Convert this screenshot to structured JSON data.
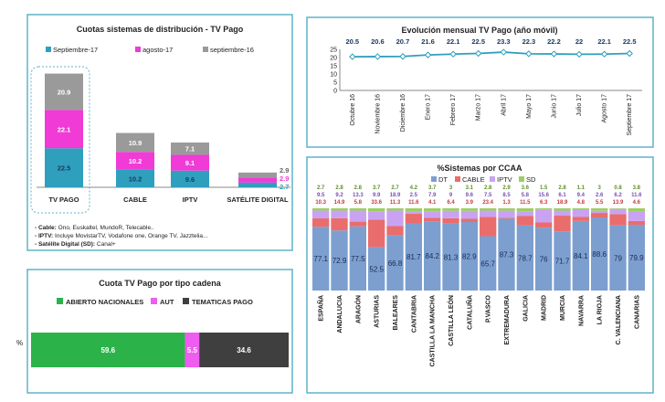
{
  "chart_data": [
    {
      "type": "bar",
      "stacked": true,
      "title": "Cuotas sistemas de distribución - TV Pago",
      "legend_position": "top",
      "categories": [
        "TV PAGO",
        "CABLE",
        "IPTV",
        "SATÉLITE DIGITAL"
      ],
      "series": [
        {
          "name": "Septiembre-17",
          "color": "#2f9fbe",
          "values": [
            22.5,
            10.2,
            9.6,
            2.7
          ]
        },
        {
          "name": "agosto-17",
          "color": "#f03bd6",
          "values": [
            22.1,
            10.2,
            9.1,
            2.9
          ]
        },
        {
          "name": "septiembre-16",
          "color": "#9a9a9a",
          "values": [
            20.9,
            10.9,
            7.1,
            2.9
          ]
        }
      ],
      "notes": [
        {
          "label": "- Cable:",
          "text": " Ono, Euskaltel, MundoR, Telecable.."
        },
        {
          "label": "- IPTV:",
          "text": " Incluye MovistarTV, Vodafone one, Orange TV, Jazztelia..."
        },
        {
          "label": "- Satélite Digital (SD):",
          "text": " Canal+"
        }
      ]
    },
    {
      "type": "line",
      "title": "Evolución mensual TV Pago (año móvil)",
      "color": "#2f9fbe",
      "ylim": [
        0,
        25
      ],
      "yticks": [
        0,
        5,
        10,
        15,
        20,
        25
      ],
      "grid": false,
      "categories": [
        "Octubre 16",
        "Noviembre 16",
        "Diciembre 16",
        "Enero 17",
        "Febrero 17",
        "Marzo 17",
        "Abril 17",
        "Mayo 17",
        "Junio 17",
        "Julio 17",
        "Agosto 17",
        "Septiembre 17"
      ],
      "values": [
        20.5,
        20.6,
        20.7,
        21.6,
        22.1,
        22.5,
        23.3,
        22.3,
        22.2,
        22,
        22.1,
        22.5
      ]
    },
    {
      "type": "bar",
      "stacked": true,
      "orientation": "horizontal",
      "title": "Cuota TV Pago por tipo cadena",
      "ylabel": "%",
      "legend_position": "top",
      "series": [
        {
          "name": "ABIERTO NACIONALES",
          "color": "#2bb34a",
          "values": [
            59.6
          ]
        },
        {
          "name": "AUT",
          "color": "#ef5cf0",
          "values": [
            5.5
          ]
        },
        {
          "name": "TEMATICAS PAGO",
          "color": "#3f3f3f",
          "values": [
            34.6
          ]
        }
      ]
    },
    {
      "type": "bar",
      "stacked": true,
      "title": "%Sistemas por CCAA",
      "legend_position": "top",
      "categories": [
        "ESPAÑA",
        "ANDALUCIA",
        "ARAGÓN",
        "ASTURIAS",
        "BALEARES",
        "CANTABRIA",
        "CASTILLA LA MANCHA",
        "CASTILLA LEÓN",
        "CATALUÑA",
        "P.VASCO",
        "EXTREMADURA",
        "GALICIA",
        "MADRID",
        "MURCIA",
        "NAVARRA",
        "LA RIOJA",
        "C. VALENCIANA",
        "CANARIAS"
      ],
      "series": [
        {
          "name": "DT",
          "color": "#7c9fd0",
          "values": [
            77.1,
            72.9,
            77.5,
            52.5,
            66.8,
            81.7,
            84.2,
            81.3,
            82.9,
            65.7,
            87.3,
            78.7,
            76,
            71.7,
            84.1,
            88.6,
            79,
            79.9
          ]
        },
        {
          "name": "CABLE",
          "color": "#e96d6d",
          "values": [
            10.3,
            14.9,
            5.8,
            33.6,
            11.3,
            11.6,
            4.1,
            6.4,
            3.9,
            23.4,
            1.3,
            11.5,
            6.3,
            18.9,
            4.8,
            5.5,
            13.9,
            4.6
          ]
        },
        {
          "name": "IPTV",
          "color": "#c9a3f2",
          "values": [
            9.5,
            9.2,
            13.3,
            9.9,
            18.9,
            2.5,
            7.9,
            9,
            9.6,
            7.5,
            8.5,
            5.8,
            15.6,
            6.1,
            9.4,
            2.6,
            6.2,
            11.6
          ]
        },
        {
          "name": "SD",
          "color": "#9ccf5f",
          "values": [
            2.7,
            2.8,
            2.8,
            3.7,
            2.7,
            4.2,
            3.7,
            3,
            3.1,
            2.8,
            2.9,
            3.6,
            1.5,
            2.8,
            1.1,
            3.0,
            0.8,
            3.8
          ]
        }
      ]
    }
  ]
}
